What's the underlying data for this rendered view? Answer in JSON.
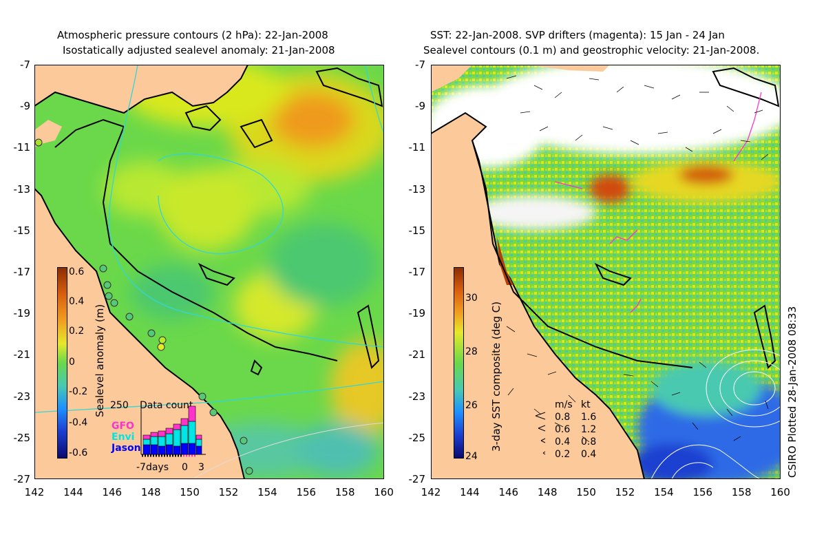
{
  "left_panel": {
    "title_line1": "Atmospheric pressure contours (2 hPa): 22-Jan-2008",
    "title_line2": "Isostatically adjusted sealevel anomaly: 21-Jan-2008",
    "colorbar_label": "Sealevel anomaly (m)",
    "colorbar_ticks": [
      "0.6",
      "0.4",
      "0.2",
      "0",
      "-0.2",
      "-0.4",
      "-0.6"
    ],
    "inset": {
      "ymax_label": "250",
      "title": "Data count",
      "missions": [
        "GFO",
        "Envi",
        "Jason"
      ],
      "mission_colors": [
        "#ff33cc",
        "#00e5e5",
        "#0000ff"
      ],
      "x_left": "-7days",
      "x_zero": "0",
      "x_right": "3"
    }
  },
  "right_panel": {
    "title_line1": "SST: 22-Jan-2008. SVP drifters (magenta): 15 Jan - 24 Jan",
    "title_line2": "Sealevel contours (0.1 m) and geostrophic velocity: 21-Jan-2008.",
    "colorbar_label": "3-day SST composite (deg C)",
    "colorbar_ticks": [
      "30",
      "28",
      "26",
      "24"
    ],
    "speed_legend": {
      "header_ms": "m/s",
      "header_kt": "kt",
      "rows": [
        {
          "ms": "0.8",
          "kt": "1.6"
        },
        {
          "ms": "0.6",
          "kt": "1.2"
        },
        {
          "ms": "0.4",
          "kt": "0.8"
        },
        {
          "ms": "0.2",
          "kt": "0.4"
        }
      ]
    }
  },
  "y_axis_labels": [
    "-7",
    "-9",
    "-11",
    "-13",
    "-15",
    "-17",
    "-19",
    "-21",
    "-23",
    "-25",
    "-27"
  ],
  "x_axis_labels": [
    "142",
    "144",
    "146",
    "148",
    "150",
    "152",
    "154",
    "156",
    "158",
    "160"
  ],
  "credit": "CSIRO Plotted 28-Jan-2008 08:33",
  "colors": {
    "land": "#fbc99a",
    "sea_green": "#6ad84a",
    "sea_yellow": "#d9e81f",
    "sea_orange": "#ef9a1a",
    "sea_cyan": "#48c9b0",
    "sea_blue": "#2e6be6",
    "drifter": "#ff33cc",
    "contour_cyan": "#33d6d6"
  }
}
